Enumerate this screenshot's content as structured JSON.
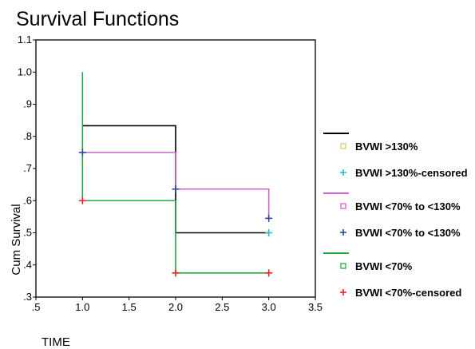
{
  "chart_data": {
    "type": "line",
    "title": "Survival Functions",
    "xlabel": "TIME",
    "ylabel": "Cum Survival",
    "xlim": [
      0.5,
      3.5
    ],
    "ylim": [
      0.3,
      1.1
    ],
    "x_ticks": [
      ".5",
      "1.0",
      "1.5",
      "2.0",
      "2.5",
      "3.0",
      "3.5"
    ],
    "y_ticks": [
      ".3",
      ".4",
      ".5",
      ".6",
      ".7",
      ".8",
      ".9",
      "1.0",
      "1.1"
    ],
    "grid": false,
    "legend_position": "right",
    "series": [
      {
        "name": "BVWI >130%",
        "color": "#000000",
        "censored_name": "BVWI >130%-censored",
        "censored_color": "#33BBCC",
        "step_x": [
          1,
          2,
          2,
          3
        ],
        "step_y": [
          0.833,
          0.833,
          0.5,
          0.5
        ],
        "censored": [
          {
            "x": 3,
            "y": 0.5
          }
        ]
      },
      {
        "name": "BVWI <70% to <130%",
        "color": "#CC66CC",
        "censored_name": "BVWI <70% to <130%",
        "censored_color": "#334499",
        "step_x": [
          1,
          2,
          2,
          3,
          3
        ],
        "step_y": [
          0.75,
          0.75,
          0.636,
          0.636,
          0.545
        ],
        "censored": [
          {
            "x": 1,
            "y": 0.75
          },
          {
            "x": 2,
            "y": 0.636
          },
          {
            "x": 3,
            "y": 0.545
          }
        ]
      },
      {
        "name": "BVWI <70%",
        "color": "#22AA44",
        "censored_name": "BVWI <70%-censored",
        "censored_color": "#EE2222",
        "step_x": [
          1,
          1,
          2,
          2,
          3
        ],
        "step_y": [
          1.0,
          0.6,
          0.6,
          0.375,
          0.375
        ],
        "censored": [
          {
            "x": 1,
            "y": 0.6
          },
          {
            "x": 2,
            "y": 0.375
          },
          {
            "x": 3,
            "y": 0.375
          }
        ]
      }
    ]
  }
}
